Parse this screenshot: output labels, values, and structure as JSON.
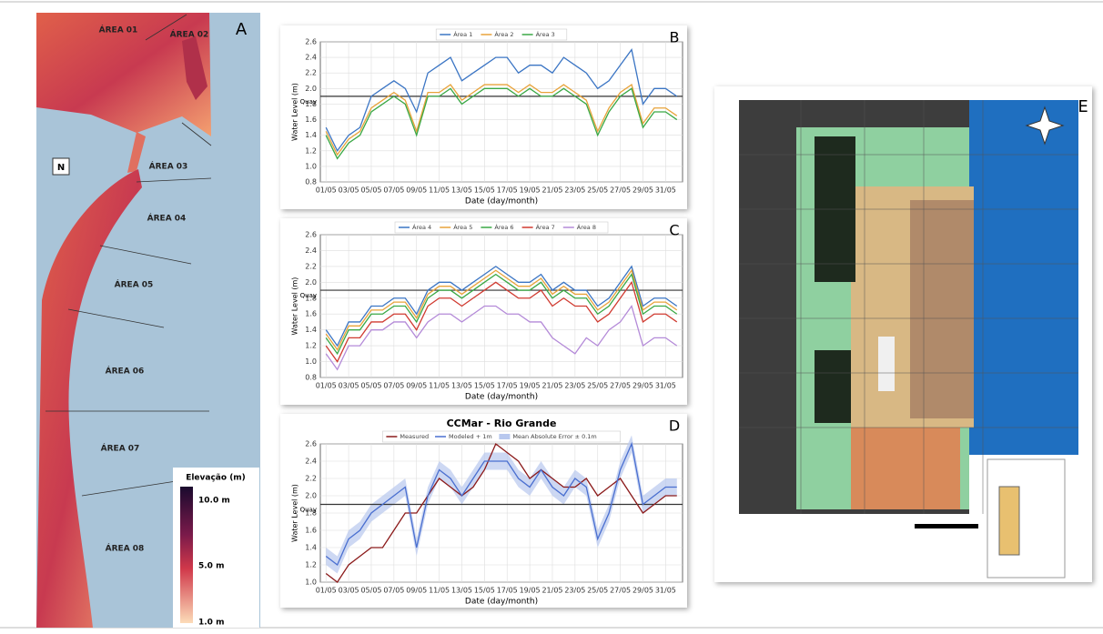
{
  "chart_data": [
    {
      "type": "line",
      "panel_label": "B",
      "ylabel": "Water Level (m)",
      "xlabel": "Date (day/month)",
      "x": [
        1,
        2,
        3,
        4,
        5,
        6,
        7,
        8,
        9,
        10,
        11,
        12,
        13,
        14,
        15,
        16,
        17,
        18,
        19,
        20,
        21,
        22,
        23,
        24,
        25,
        26,
        27,
        28,
        29,
        30,
        31,
        32
      ],
      "xlim": [
        0.5,
        32.5
      ],
      "xticks": [
        {
          "value": 1,
          "label": "01/05"
        },
        {
          "value": 3,
          "label": "03/05"
        },
        {
          "value": 5,
          "label": "05/05"
        },
        {
          "value": 7,
          "label": "07/05"
        },
        {
          "value": 9,
          "label": "09/05"
        },
        {
          "value": 11,
          "label": "11/05"
        },
        {
          "value": 13,
          "label": "13/05"
        },
        {
          "value": 15,
          "label": "15/05"
        },
        {
          "value": 17,
          "label": "17/05"
        },
        {
          "value": 19,
          "label": "19/05"
        },
        {
          "value": 21,
          "label": "21/05"
        },
        {
          "value": 23,
          "label": "23/05"
        },
        {
          "value": 25,
          "label": "25/05"
        },
        {
          "value": 27,
          "label": "27/05"
        },
        {
          "value": 29,
          "label": "29/05"
        },
        {
          "value": 31,
          "label": "31/05"
        }
      ],
      "ylim": [
        0.8,
        2.6
      ],
      "yticks": [
        0.8,
        {
          "value": 1,
          "label": "1.0"
        },
        1.2,
        1.4,
        1.6,
        1.8,
        {
          "value": 2,
          "label": "2.0"
        },
        2.2,
        2.4,
        2.6
      ],
      "grid": true,
      "quay": {
        "value": 1.9,
        "label": "Quay"
      },
      "series": [
        {
          "name": "Área 1",
          "color": "#3b75c4",
          "values": [
            1.5,
            1.2,
            1.4,
            1.5,
            1.9,
            2.0,
            2.1,
            2.0,
            1.7,
            2.2,
            2.3,
            2.4,
            2.1,
            2.2,
            2.3,
            2.4,
            2.4,
            2.2,
            2.3,
            2.3,
            2.2,
            2.4,
            2.3,
            2.2,
            2.0,
            2.1,
            2.3,
            2.5,
            1.8,
            2.0,
            2.0,
            1.9
          ]
        },
        {
          "name": "Área 2",
          "color": "#e8a33a",
          "values": [
            1.45,
            1.15,
            1.35,
            1.45,
            1.75,
            1.85,
            1.95,
            1.85,
            1.45,
            1.95,
            1.95,
            2.05,
            1.85,
            1.95,
            2.05,
            2.05,
            2.05,
            1.95,
            2.05,
            1.95,
            1.95,
            2.05,
            1.95,
            1.85,
            1.45,
            1.75,
            1.95,
            2.05,
            1.55,
            1.75,
            1.75,
            1.65
          ]
        },
        {
          "name": "Área 3",
          "color": "#3aa845",
          "values": [
            1.4,
            1.1,
            1.3,
            1.4,
            1.7,
            1.8,
            1.9,
            1.8,
            1.4,
            1.9,
            1.9,
            2.0,
            1.8,
            1.9,
            2.0,
            2.0,
            2.0,
            1.9,
            2.0,
            1.9,
            1.9,
            2.0,
            1.9,
            1.8,
            1.4,
            1.7,
            1.9,
            2.0,
            1.5,
            1.7,
            1.7,
            1.6
          ]
        }
      ]
    },
    {
      "type": "line",
      "panel_label": "C",
      "ylabel": "Water Level (m)",
      "xlabel": "Date (day/month)",
      "x": [
        1,
        2,
        3,
        4,
        5,
        6,
        7,
        8,
        9,
        10,
        11,
        12,
        13,
        14,
        15,
        16,
        17,
        18,
        19,
        20,
        21,
        22,
        23,
        24,
        25,
        26,
        27,
        28,
        29,
        30,
        31,
        32
      ],
      "xlim": [
        0.5,
        32.5
      ],
      "xticks": [
        {
          "value": 1,
          "label": "01/05"
        },
        {
          "value": 3,
          "label": "03/05"
        },
        {
          "value": 5,
          "label": "05/05"
        },
        {
          "value": 7,
          "label": "07/05"
        },
        {
          "value": 9,
          "label": "09/05"
        },
        {
          "value": 11,
          "label": "11/05"
        },
        {
          "value": 13,
          "label": "13/05"
        },
        {
          "value": 15,
          "label": "15/05"
        },
        {
          "value": 17,
          "label": "17/05"
        },
        {
          "value": 19,
          "label": "19/05"
        },
        {
          "value": 21,
          "label": "21/05"
        },
        {
          "value": 23,
          "label": "23/05"
        },
        {
          "value": 25,
          "label": "25/05"
        },
        {
          "value": 27,
          "label": "27/05"
        },
        {
          "value": 29,
          "label": "29/05"
        },
        {
          "value": 31,
          "label": "31/05"
        }
      ],
      "ylim": [
        0.8,
        2.6
      ],
      "yticks": [
        0.8,
        {
          "value": 1,
          "label": "1.0"
        },
        1.2,
        1.4,
        1.6,
        1.8,
        {
          "value": 2,
          "label": "2.0"
        },
        2.2,
        2.4,
        2.6
      ],
      "grid": true,
      "quay": {
        "value": 1.9,
        "label": "Quay"
      },
      "series": [
        {
          "name": "Área 4",
          "color": "#3b75c4",
          "values": [
            1.4,
            1.2,
            1.5,
            1.5,
            1.7,
            1.7,
            1.8,
            1.8,
            1.6,
            1.9,
            2.0,
            2.0,
            1.9,
            2.0,
            2.1,
            2.2,
            2.1,
            2.0,
            2.0,
            2.1,
            1.9,
            2.0,
            1.9,
            1.9,
            1.7,
            1.8,
            2.0,
            2.2,
            1.7,
            1.8,
            1.8,
            1.7
          ]
        },
        {
          "name": "Área 5",
          "color": "#e8a33a",
          "values": [
            1.35,
            1.15,
            1.45,
            1.45,
            1.65,
            1.65,
            1.75,
            1.75,
            1.55,
            1.85,
            1.95,
            1.95,
            1.85,
            1.95,
            2.05,
            2.15,
            2.05,
            1.95,
            1.95,
            2.05,
            1.85,
            1.95,
            1.85,
            1.85,
            1.65,
            1.75,
            1.95,
            2.15,
            1.65,
            1.75,
            1.75,
            1.65
          ]
        },
        {
          "name": "Área 6",
          "color": "#3aa845",
          "values": [
            1.3,
            1.1,
            1.4,
            1.4,
            1.6,
            1.6,
            1.7,
            1.7,
            1.5,
            1.8,
            1.9,
            1.9,
            1.8,
            1.9,
            2.0,
            2.1,
            2.0,
            1.9,
            1.9,
            2.0,
            1.8,
            1.9,
            1.8,
            1.8,
            1.6,
            1.7,
            1.9,
            2.1,
            1.6,
            1.7,
            1.7,
            1.6
          ]
        },
        {
          "name": "Área 7",
          "color": "#d03a30",
          "values": [
            1.2,
            1.0,
            1.3,
            1.3,
            1.5,
            1.5,
            1.6,
            1.6,
            1.4,
            1.7,
            1.8,
            1.8,
            1.7,
            1.8,
            1.9,
            2.0,
            1.9,
            1.8,
            1.8,
            1.9,
            1.7,
            1.8,
            1.7,
            1.7,
            1.5,
            1.6,
            1.8,
            2.0,
            1.5,
            1.6,
            1.6,
            1.5
          ]
        },
        {
          "name": "Área 8",
          "color": "#b48ad8",
          "values": [
            1.1,
            0.9,
            1.2,
            1.2,
            1.4,
            1.4,
            1.5,
            1.5,
            1.3,
            1.5,
            1.6,
            1.6,
            1.5,
            1.6,
            1.7,
            1.7,
            1.6,
            1.6,
            1.5,
            1.5,
            1.3,
            1.2,
            1.1,
            1.3,
            1.2,
            1.4,
            1.5,
            1.7,
            1.2,
            1.3,
            1.3,
            1.2
          ]
        }
      ]
    },
    {
      "type": "line",
      "panel_label": "D",
      "title": "CCMar - Rio Grande",
      "ylabel": "Water Level (m)",
      "xlabel": "Date (day/month)",
      "x": [
        1,
        2,
        3,
        4,
        5,
        6,
        7,
        8,
        9,
        10,
        11,
        12,
        13,
        14,
        15,
        16,
        17,
        18,
        19,
        20,
        21,
        22,
        23,
        24,
        25,
        26,
        27,
        28,
        29,
        30,
        31,
        32
      ],
      "xlim": [
        0.5,
        32.5
      ],
      "xticks": [
        {
          "value": 1,
          "label": "01/05"
        },
        {
          "value": 3,
          "label": "03/05"
        },
        {
          "value": 5,
          "label": "05/05"
        },
        {
          "value": 7,
          "label": "07/05"
        },
        {
          "value": 9,
          "label": "09/05"
        },
        {
          "value": 11,
          "label": "11/05"
        },
        {
          "value": 13,
          "label": "13/05"
        },
        {
          "value": 15,
          "label": "15/05"
        },
        {
          "value": 17,
          "label": "17/05"
        },
        {
          "value": 19,
          "label": "19/05"
        },
        {
          "value": 21,
          "label": "21/05"
        },
        {
          "value": 23,
          "label": "23/05"
        },
        {
          "value": 25,
          "label": "25/05"
        },
        {
          "value": 27,
          "label": "27/05"
        },
        {
          "value": 29,
          "label": "29/05"
        },
        {
          "value": 31,
          "label": "31/05"
        }
      ],
      "ylim": [
        1.0,
        2.6
      ],
      "yticks": [
        {
          "value": 1,
          "label": "1.0"
        },
        1.2,
        1.4,
        1.6,
        1.8,
        {
          "value": 2,
          "label": "2.0"
        },
        2.2,
        2.4,
        2.6
      ],
      "grid": true,
      "quay": {
        "value": 1.9,
        "label": "Quay"
      },
      "series": [
        {
          "name": "Measured",
          "color": "#8b1a1a",
          "values": [
            1.1,
            1.0,
            1.2,
            1.3,
            1.4,
            1.4,
            1.6,
            1.8,
            1.8,
            2.0,
            2.2,
            2.1,
            2.0,
            2.1,
            2.3,
            2.6,
            2.5,
            2.4,
            2.2,
            2.3,
            2.2,
            2.1,
            2.1,
            2.2,
            2.0,
            2.1,
            2.2,
            2.0,
            1.8,
            1.9,
            2.0,
            2.0
          ]
        },
        {
          "name": "Modeled + 1m",
          "color": "#4a6fd0",
          "values": [
            1.3,
            1.2,
            1.5,
            1.6,
            1.8,
            1.9,
            2.0,
            2.1,
            1.4,
            2.0,
            2.3,
            2.2,
            2.0,
            2.2,
            2.4,
            2.4,
            2.4,
            2.2,
            2.1,
            2.3,
            2.1,
            2.0,
            2.2,
            2.1,
            1.5,
            1.8,
            2.3,
            2.6,
            1.9,
            2.0,
            2.1,
            2.1
          ]
        },
        {
          "name": "Mean Absolute Error ± 0.1m",
          "color": "#b8c8ee",
          "error": 0.1
        }
      ]
    }
  ],
  "map_a": {
    "panel_label": "A",
    "north": "N",
    "areas": [
      "ÁREA 01",
      "ÁREA 02",
      "ÁREA 03",
      "ÁREA 04",
      "ÁREA 05",
      "ÁREA 06",
      "ÁREA 07",
      "ÁREA 08"
    ],
    "legend_title": "Elevação (m)",
    "legend_labels": [
      "10.0 m",
      "5.0 m",
      "1.0 m"
    ]
  },
  "map_e": {
    "panel_label": "E"
  }
}
